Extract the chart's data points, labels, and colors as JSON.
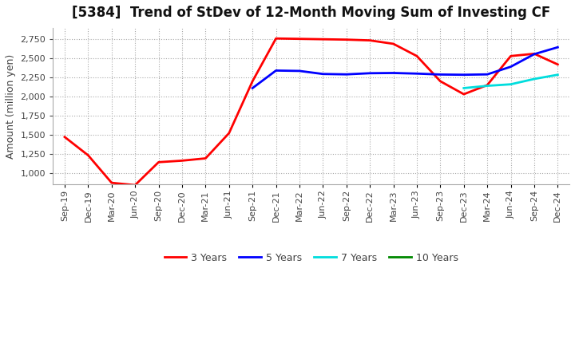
{
  "title": "[5384]  Trend of StDev of 12-Month Moving Sum of Investing CF",
  "ylabel": "Amount (million yen)",
  "background_color": "#ffffff",
  "plot_bg_color": "#f5f5f5",
  "grid_color": "#aaaaaa",
  "legend": [
    "3 Years",
    "5 Years",
    "7 Years",
    "10 Years"
  ],
  "legend_colors": [
    "#ff0000",
    "#0000ff",
    "#00dddd",
    "#008800"
  ],
  "x_labels": [
    "Sep-19",
    "Dec-19",
    "Mar-20",
    "Jun-20",
    "Sep-20",
    "Dec-20",
    "Mar-21",
    "Jun-21",
    "Sep-21",
    "Dec-21",
    "Mar-22",
    "Jun-22",
    "Sep-22",
    "Dec-22",
    "Mar-23",
    "Jun-23",
    "Sep-23",
    "Dec-23",
    "Mar-24",
    "Jun-24",
    "Sep-24",
    "Dec-24"
  ],
  "ylim": [
    850,
    2900
  ],
  "yticks": [
    1000,
    1250,
    1500,
    1750,
    2000,
    2250,
    2500,
    2750
  ],
  "series_3y": [
    1470,
    1230,
    870,
    840,
    1140,
    1160,
    1190,
    1520,
    2200,
    2760,
    2755,
    2750,
    2745,
    2735,
    2690,
    2530,
    2200,
    2030,
    2150,
    2530,
    2560,
    2420
  ],
  "series_5y": [
    null,
    null,
    null,
    null,
    null,
    null,
    null,
    null,
    2110,
    2340,
    2335,
    2295,
    2290,
    2305,
    2308,
    2300,
    2288,
    2285,
    2290,
    2390,
    2555,
    2645
  ],
  "series_7y": [
    null,
    null,
    null,
    null,
    null,
    null,
    null,
    null,
    null,
    null,
    null,
    null,
    null,
    null,
    null,
    null,
    null,
    2110,
    2140,
    2160,
    2230,
    2285
  ],
  "series_10y": [
    null,
    null,
    null,
    null,
    null,
    null,
    null,
    null,
    null,
    null,
    null,
    null,
    null,
    null,
    null,
    null,
    null,
    null,
    null,
    null,
    null,
    null
  ],
  "title_fontsize": 12,
  "tick_fontsize": 8,
  "ylabel_fontsize": 9,
  "legend_fontsize": 9,
  "line_width": 2.0
}
